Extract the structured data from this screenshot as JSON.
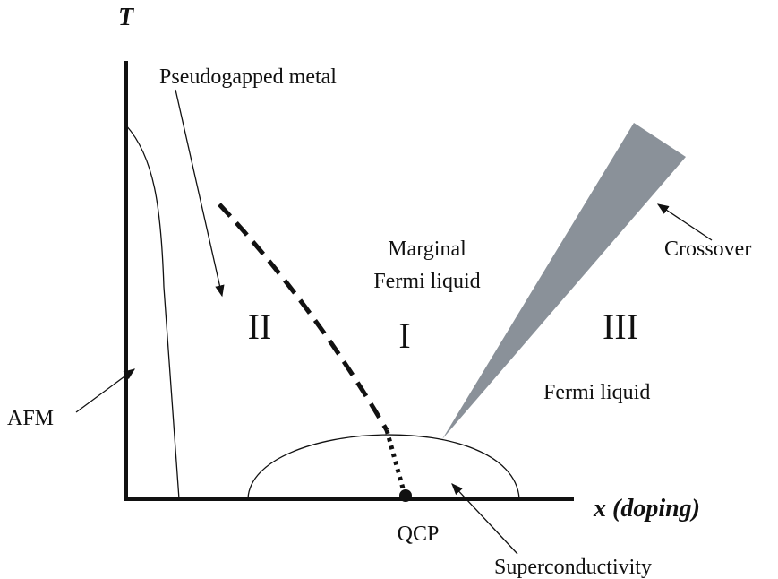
{
  "axes": {
    "y_label": "T",
    "x_label": "x (doping)"
  },
  "regions": {
    "pseudogap": "Pseudogapped metal",
    "mfl_line1": "Marginal",
    "mfl_line2": "Fermi liquid",
    "crossover": "Crossover",
    "region_2": "II",
    "region_1": "I",
    "region_3": "III",
    "fermi_liquid": "Fermi liquid",
    "afm": "AFM",
    "qcp": "QCP",
    "superconductivity": "Superconductivity"
  }
}
